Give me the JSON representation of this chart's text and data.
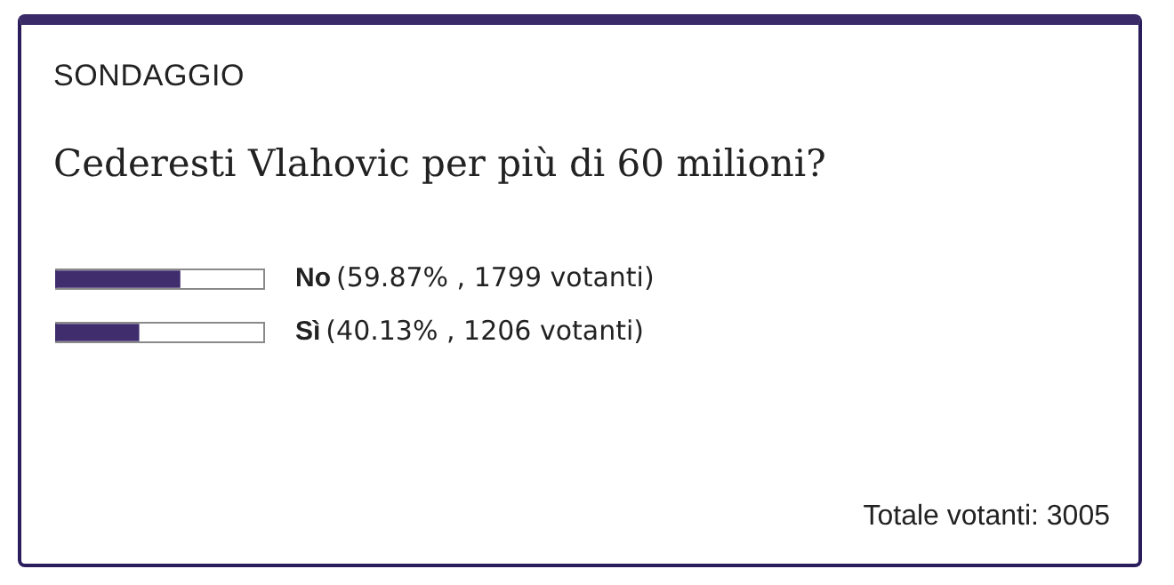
{
  "chart_data": {
    "type": "bar",
    "orientation": "horizontal",
    "title": "SONDAGGIO",
    "subtitle": "Cederesti Vlahovic per più di 60 milioni?",
    "categories": [
      "No",
      "Sì"
    ],
    "values": [
      59.87,
      40.13
    ],
    "value_labels": [
      "(59.87% , 1799 votanti)",
      "(40.13% , 1206 votanti)"
    ],
    "color": "#3f2d6e",
    "xlim": [
      0,
      100
    ],
    "annotations": [
      "Totale votanti: 3005"
    ]
  }
}
